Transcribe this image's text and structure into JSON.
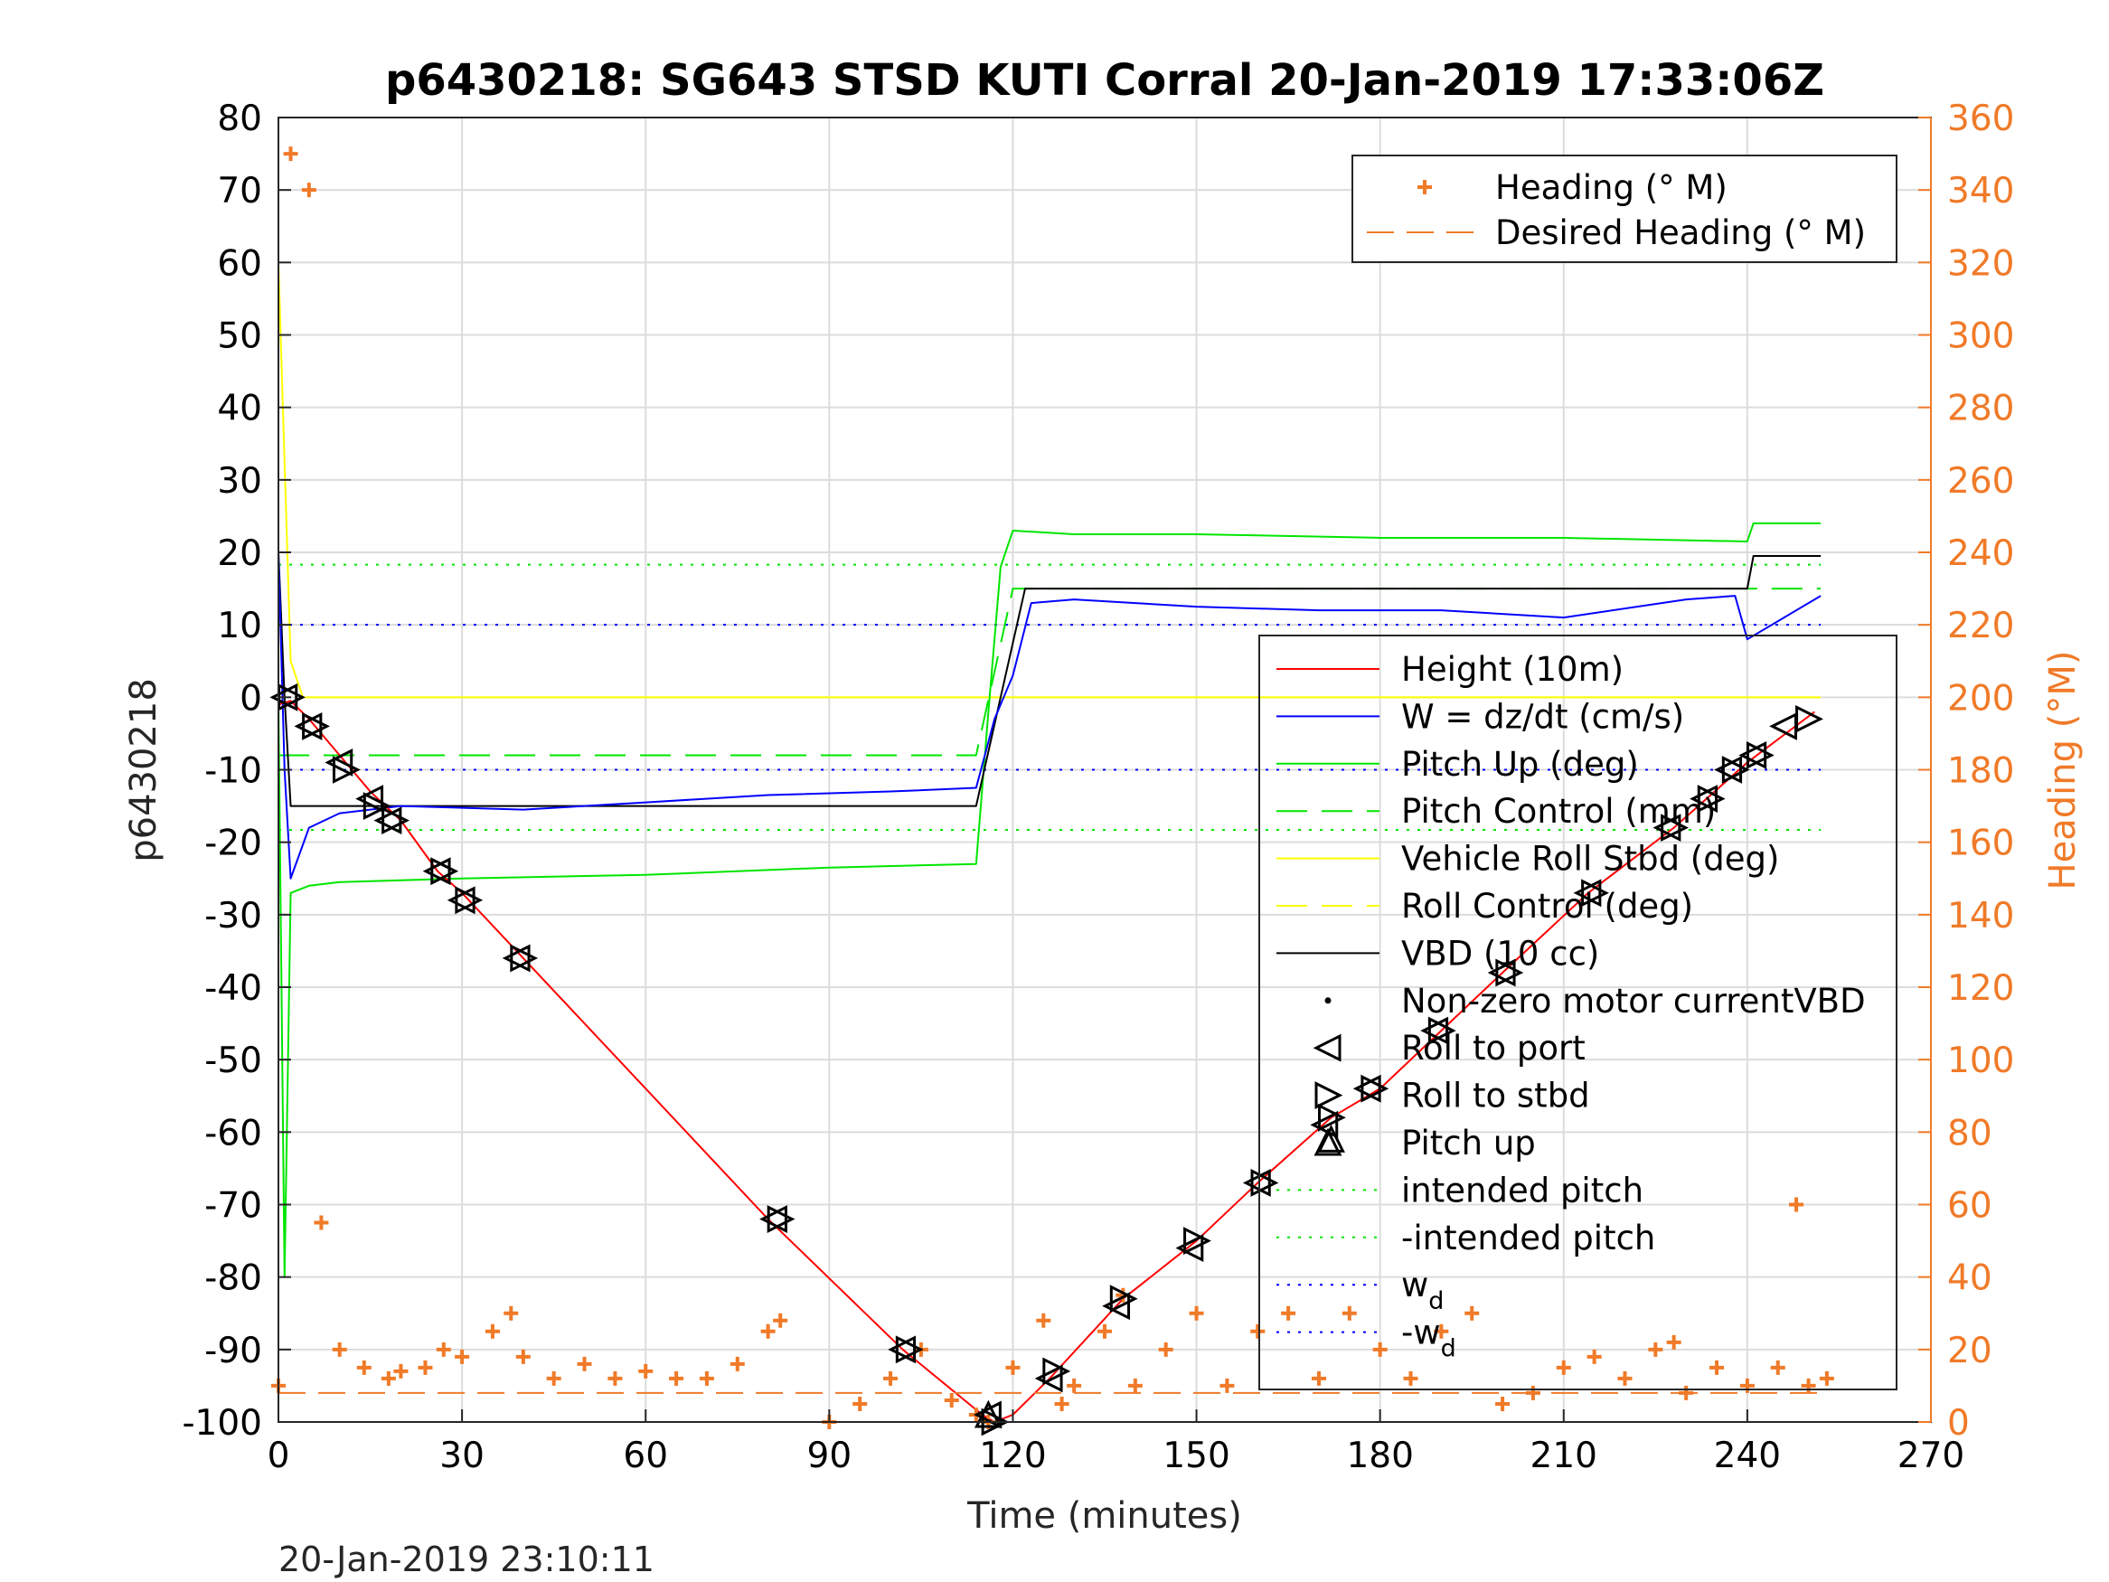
{
  "chart_data": {
    "type": "line",
    "title": "p6430218: SG643 STSD KUTI Corral 20-Jan-2019 17:33:06Z",
    "xlabel": "Time (minutes)",
    "ylabel": "p6430218",
    "ylabel_right": "Heading (°M)",
    "footer": "20-Jan-2019 23:10:11",
    "xlim": [
      0,
      270
    ],
    "ylim": [
      -100,
      80
    ],
    "ylim_right": [
      0,
      360
    ],
    "x_ticks": [
      "0",
      "30",
      "60",
      "90",
      "120",
      "150",
      "180",
      "210",
      "240",
      "270"
    ],
    "y_ticks": [
      "80",
      "70",
      "60",
      "50",
      "40",
      "30",
      "20",
      "10",
      "0",
      "-10",
      "-20",
      "-30",
      "-40",
      "-50",
      "-60",
      "-70",
      "-80",
      "-90",
      "-100"
    ],
    "y_ticks_right": [
      "360",
      "340",
      "320",
      "300",
      "280",
      "260",
      "240",
      "220",
      "200",
      "180",
      "160",
      "140",
      "120",
      "100",
      "80",
      "60",
      "40",
      "20",
      "0"
    ],
    "grid": true,
    "colors": {
      "height": "#ff0000",
      "w": "#0000ff",
      "pitch": "#00e600",
      "roll": "#ffff00",
      "vbd": "#000000",
      "heading": "#f07a28"
    },
    "legend_heading": {
      "placement": "top-right",
      "entries": [
        {
          "label": "Heading (° M)",
          "style": "plus"
        },
        {
          "label": "Desired Heading (° M)",
          "style": "dash"
        }
      ]
    },
    "legend_main": {
      "placement": "right",
      "entries": [
        {
          "label": "Height (10m)",
          "color": "#ff0000",
          "style": "solid"
        },
        {
          "label": "W = dz/dt (cm/s)",
          "color": "#0000ff",
          "style": "solid"
        },
        {
          "label": "Pitch Up (deg)",
          "color": "#00e600",
          "style": "solid"
        },
        {
          "label": "Pitch Control (mm)",
          "color": "#00e600",
          "style": "dash"
        },
        {
          "label": "Vehicle Roll Stbd (deg)",
          "color": "#ffff00",
          "style": "solid"
        },
        {
          "label": "Roll Control (deg)",
          "color": "#ffff00",
          "style": "dash"
        },
        {
          "label": "VBD (10 cc)",
          "color": "#000000",
          "style": "solid"
        },
        {
          "label": "Non-zero motor currentVBD",
          "color": "#000000",
          "style": "dot"
        },
        {
          "label": "Roll to port",
          "color": "#000000",
          "style": "tri-left"
        },
        {
          "label": "Roll to stbd",
          "color": "#000000",
          "style": "tri-right"
        },
        {
          "label": "Pitch up",
          "color": "#000000",
          "style": "tri-up"
        },
        {
          "label": "intended pitch",
          "color": "#00e600",
          "style": "dotted"
        },
        {
          "label": "-intended pitch",
          "color": "#00e600",
          "style": "dotted"
        },
        {
          "label": "w",
          "sub": "d",
          "color": "#0000ff",
          "style": "dotted"
        },
        {
          "label": "-w",
          "sub": "d",
          "color": "#0000ff",
          "style": "dotted"
        }
      ]
    },
    "series": [
      {
        "name": "Height (10m)",
        "x": [
          0,
          2,
          5,
          10,
          15,
          20,
          26,
          30,
          40,
          60,
          80,
          102,
          115,
          117,
          120,
          126,
          138,
          150,
          160,
          172,
          180,
          190,
          200,
          214,
          228,
          240,
          251
        ],
        "y": [
          -1,
          -0.5,
          -3,
          -8,
          -13,
          -17,
          -24,
          -27,
          -36,
          -54,
          -72,
          -90,
          -99,
          -100,
          -99,
          -94,
          -83,
          -75,
          -67,
          -58,
          -54,
          -46,
          -38,
          -27,
          -18,
          -9,
          -2
        ]
      },
      {
        "name": "W = dz/dt (cm/s)",
        "x": [
          0,
          1,
          2,
          5,
          10,
          20,
          40,
          60,
          80,
          100,
          114,
          117,
          120,
          123,
          130,
          150,
          170,
          190,
          210,
          230,
          238,
          240,
          252
        ],
        "y": [
          20,
          -10,
          -25,
          -18,
          -16,
          -15,
          -15.5,
          -14.5,
          -13.5,
          -13,
          -12.5,
          -3,
          3,
          13,
          13.5,
          12.5,
          12,
          12,
          11,
          13.5,
          14,
          8,
          14
        ]
      },
      {
        "name": "Pitch Up (deg)",
        "x": [
          0,
          1,
          2,
          5,
          10,
          30,
          60,
          90,
          114,
          116,
          118,
          120,
          130,
          150,
          180,
          210,
          240,
          241,
          252
        ],
        "y": [
          0,
          -80,
          -27,
          -26,
          -25.5,
          -25,
          -24.5,
          -23.5,
          -23,
          -2,
          18,
          23,
          22.5,
          22.5,
          22,
          22,
          21.5,
          24,
          24
        ]
      },
      {
        "name": "Pitch Control (mm)",
        "x": [
          0,
          114,
          120,
          252
        ],
        "y": [
          -8,
          -8,
          15,
          15
        ]
      },
      {
        "name": "Vehicle Roll Stbd (deg)",
        "x": [
          0,
          2,
          4,
          10,
          30,
          60,
          90,
          114,
          120,
          150,
          180,
          210,
          240,
          252
        ],
        "y": [
          60,
          5,
          0,
          0,
          0,
          0,
          0,
          0,
          0,
          0,
          0,
          0,
          0,
          0
        ]
      },
      {
        "name": "VBD (10 cc)",
        "x": [
          0,
          1,
          2,
          3,
          114,
          118,
          122,
          160,
          240,
          241,
          252
        ],
        "y": [
          20,
          0,
          -15,
          -15,
          -15,
          0,
          15,
          15,
          15,
          19.5,
          19.5
        ]
      },
      {
        "name": "intended pitch",
        "x": [
          0,
          252
        ],
        "y": [
          18.3,
          18.3
        ]
      },
      {
        "name": "-intended pitch",
        "x": [
          0,
          252
        ],
        "y": [
          -18.3,
          -18.3
        ]
      },
      {
        "name": "w_d",
        "x": [
          0,
          252
        ],
        "y": [
          10,
          10
        ]
      },
      {
        "name": "-w_d",
        "x": [
          0,
          252
        ],
        "y": [
          -10,
          -10
        ]
      },
      {
        "name": "Roll to port",
        "x": [
          1,
          5,
          10,
          15,
          18,
          26,
          30,
          39,
          81,
          102,
          116,
          126,
          137,
          149,
          160,
          171,
          178,
          189,
          200,
          214,
          227,
          233,
          237,
          241,
          246
        ],
        "y": [
          0,
          -4,
          -9,
          -14,
          -17,
          -24,
          -28,
          -36,
          -72,
          -90,
          -99,
          -94,
          -84,
          -76,
          -67,
          -59,
          -54,
          -46,
          -38,
          -27,
          -18,
          -14,
          -10,
          -8,
          -4
        ]
      },
      {
        "name": "Roll to stbd",
        "x": [
          2,
          6,
          11,
          16,
          19,
          27,
          31,
          40,
          82,
          103,
          117,
          127,
          138,
          150,
          161,
          172,
          179,
          190,
          201,
          215,
          228,
          234,
          238,
          242,
          250
        ],
        "y": [
          0,
          -4,
          -10,
          -15,
          -17,
          -24,
          -28,
          -36,
          -72,
          -90,
          -100,
          -93,
          -83,
          -75,
          -67,
          -58,
          -54,
          -46,
          -38,
          -27,
          -18,
          -14,
          -10,
          -8,
          -3
        ]
      },
      {
        "name": "Pitch up",
        "x": [
          116,
          172
        ],
        "y": [
          -99,
          -61
        ]
      }
    ],
    "heading_series": {
      "name": "Heading (° M)",
      "x": [
        0,
        2,
        5,
        7,
        10,
        14,
        18,
        20,
        24,
        27,
        30,
        35,
        38,
        40,
        45,
        50,
        55,
        60,
        65,
        70,
        75,
        80,
        82,
        90,
        95,
        100,
        105,
        110,
        114,
        116,
        120,
        125,
        128,
        130,
        135,
        138,
        140,
        145,
        150,
        155,
        160,
        165,
        170,
        175,
        180,
        185,
        190,
        195,
        200,
        205,
        210,
        215,
        220,
        225,
        228,
        230,
        235,
        240,
        245,
        248,
        250,
        253
      ],
      "y": [
        10,
        350,
        340,
        55,
        20,
        15,
        12,
        14,
        15,
        20,
        18,
        25,
        30,
        18,
        12,
        16,
        12,
        14,
        12,
        12,
        16,
        25,
        28,
        0,
        5,
        12,
        20,
        6,
        2,
        0,
        15,
        28,
        5,
        10,
        25,
        35,
        10,
        20,
        30,
        10,
        25,
        30,
        12,
        30,
        20,
        12,
        25,
        30,
        5,
        8,
        15,
        18,
        12,
        20,
        22,
        8,
        15,
        10,
        15,
        60,
        10,
        12
      ]
    },
    "desired_heading": {
      "name": "Desired Heading (° M)",
      "x": [
        0,
        253
      ],
      "y": [
        8,
        8
      ]
    }
  }
}
